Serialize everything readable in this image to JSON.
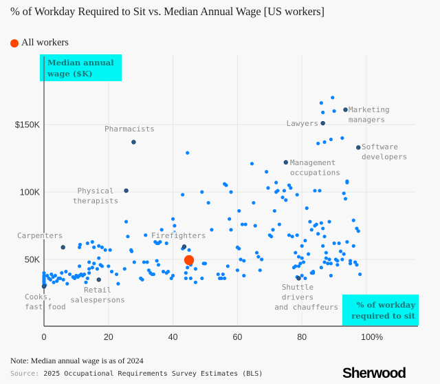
{
  "header": {
    "title": "% of Workday Required to Sit vs. Median Annual Wage [US workers]"
  },
  "legend": {
    "label": "All workers",
    "color": "#ff4500"
  },
  "footer": {
    "note": "Note: Median annual wage is as of 2024",
    "source_label": "Source:",
    "source_text": "2025 Occupational Requirements Survey Estimates (BLS)",
    "logo": "Sherwood"
  },
  "colors": {
    "point": "#0a84ff",
    "highlight": "#2a5a8a",
    "all_workers": "#ff4500",
    "axis_title_bg": "#00f5f5",
    "axis_title_text": "#1a7a78"
  },
  "chart_data": {
    "type": "scatter",
    "title": "% of Workday Required to Sit vs. Median Annual Wage [US workers]",
    "xlabel": "% of workday required to sit",
    "ylabel": "Median annual wage ($K)",
    "xlim": [
      0,
      115
    ],
    "ylim": [
      0,
      200
    ],
    "x_ticks": [
      {
        "value": 0,
        "label": "0"
      },
      {
        "value": 20,
        "label": "20"
      },
      {
        "value": 40,
        "label": "40"
      },
      {
        "value": 60,
        "label": "60"
      },
      {
        "value": 80,
        "label": "80"
      },
      {
        "value": 100,
        "label": "100%"
      }
    ],
    "y_ticks": [
      {
        "value": 50,
        "label": "50K"
      },
      {
        "value": 100,
        "label": "100K"
      },
      {
        "value": 150,
        "label": "$150K"
      }
    ],
    "grid": true,
    "all_workers": {
      "x": 45,
      "y": 49.5,
      "label": "All workers"
    },
    "highlighted": [
      {
        "name": "Pharmacists",
        "x": 27.8,
        "y": 137
      },
      {
        "name": "Physical therapists",
        "x": 25.5,
        "y": 101
      },
      {
        "name": "Carpenters",
        "x": 5.9,
        "y": 59
      },
      {
        "name": "Firefighters",
        "x": 43.5,
        "y": 59.5
      },
      {
        "name": "Retail salespersons",
        "x": 17,
        "y": 35
      },
      {
        "name": "Cooks, fast food",
        "x": 0,
        "y": 30
      },
      {
        "name": "Lawyers",
        "x": 86.5,
        "y": 151
      },
      {
        "name": "Marketing managers",
        "x": 93.5,
        "y": 161
      },
      {
        "name": "Software developers",
        "x": 97.5,
        "y": 133
      },
      {
        "name": "Management occupations",
        "x": 75,
        "y": 122
      },
      {
        "name": "Shuttle drivers and chauffeurs",
        "x": 79,
        "y": 36
      }
    ],
    "annotations": [
      {
        "target": "Pharmacists",
        "lines": [
          "Pharmacists"
        ]
      },
      {
        "target": "Physical therapists",
        "lines": [
          "Physical",
          "therapists"
        ]
      },
      {
        "target": "Carpenters",
        "lines": [
          "Carpenters"
        ]
      },
      {
        "target": "Firefighters",
        "lines": [
          "Firefighters"
        ]
      },
      {
        "target": "Retail salespersons",
        "lines": [
          "Retail",
          "salespersons"
        ]
      },
      {
        "target": "Cooks, fast food",
        "lines": [
          "Cooks,",
          "fast food"
        ]
      },
      {
        "target": "Lawyers",
        "lines": [
          "Lawyers"
        ]
      },
      {
        "target": "Marketing managers",
        "lines": [
          "Marketing",
          "managers"
        ]
      },
      {
        "target": "Software developers",
        "lines": [
          "Software",
          "developers"
        ]
      },
      {
        "target": "Management occupations",
        "lines": [
          "Management",
          "occupations"
        ]
      },
      {
        "target": "Shuttle drivers and chauffeurs",
        "lines": [
          "Shuttle",
          "drivers",
          "and chauffeurs"
        ]
      }
    ],
    "axis_title_lines": {
      "y": [
        "Median annual",
        "wage ($K)"
      ],
      "x": [
        "% of workday",
        "required to sit"
      ]
    },
    "points": [
      [
        0,
        40
      ],
      [
        0,
        38
      ],
      [
        0,
        37
      ],
      [
        0,
        36
      ],
      [
        0,
        35
      ],
      [
        0,
        34
      ],
      [
        0,
        33
      ],
      [
        0,
        32
      ],
      [
        0.4,
        31
      ],
      [
        1,
        38
      ],
      [
        1.5,
        36
      ],
      [
        2,
        35
      ],
      [
        2.3,
        39
      ],
      [
        2.8,
        37
      ],
      [
        3,
        33
      ],
      [
        3.5,
        38
      ],
      [
        4,
        34
      ],
      [
        4.5,
        36
      ],
      [
        5,
        36
      ],
      [
        5.5,
        40
      ],
      [
        6,
        35
      ],
      [
        6.8,
        41
      ],
      [
        7.2,
        32
      ],
      [
        8,
        39
      ],
      [
        9,
        37
      ],
      [
        9.5,
        36
      ],
      [
        10,
        38
      ],
      [
        10.5,
        37
      ],
      [
        11,
        38
      ],
      [
        11.5,
        39
      ],
      [
        12,
        38
      ],
      [
        12.5,
        39
      ],
      [
        13,
        33
      ],
      [
        13.5,
        36
      ],
      [
        14,
        40
      ],
      [
        11,
        45
      ],
      [
        14,
        43
      ],
      [
        14,
        48
      ],
      [
        15,
        44
      ],
      [
        15.5,
        47
      ],
      [
        16.5,
        43
      ],
      [
        17,
        51
      ],
      [
        17.5,
        46
      ],
      [
        18,
        45
      ],
      [
        20,
        45
      ],
      [
        21,
        41
      ],
      [
        22.5,
        39
      ],
      [
        23,
        32
      ],
      [
        25,
        43
      ],
      [
        11,
        59
      ],
      [
        11.2,
        61
      ],
      [
        13.5,
        62
      ],
      [
        15,
        63
      ],
      [
        15.5,
        59
      ],
      [
        17,
        60
      ],
      [
        18,
        59
      ],
      [
        19,
        57
      ],
      [
        20.5,
        57
      ],
      [
        25.5,
        78
      ],
      [
        26,
        67
      ],
      [
        27,
        57
      ],
      [
        27.2,
        56
      ],
      [
        28,
        48
      ],
      [
        30,
        36
      ],
      [
        30.5,
        35
      ],
      [
        31,
        48
      ],
      [
        31.5,
        68
      ],
      [
        32,
        48
      ],
      [
        32.5,
        42
      ],
      [
        33,
        40
      ],
      [
        33.5,
        39
      ],
      [
        34,
        39
      ],
      [
        35,
        49
      ],
      [
        35.5,
        46
      ],
      [
        35,
        62
      ],
      [
        35.5,
        62
      ],
      [
        36,
        63
      ],
      [
        36.5,
        72
      ],
      [
        34.5,
        63
      ],
      [
        37,
        41
      ],
      [
        38,
        40
      ],
      [
        38.5,
        41
      ],
      [
        38,
        62
      ],
      [
        39.5,
        36
      ],
      [
        40,
        38
      ],
      [
        40.5,
        70
      ],
      [
        41,
        68
      ],
      [
        40.5,
        75
      ],
      [
        40,
        80
      ],
      [
        43,
        58
      ],
      [
        43.5,
        59
      ],
      [
        45,
        57
      ],
      [
        45.5,
        46
      ],
      [
        44.5,
        44
      ],
      [
        44,
        40
      ],
      [
        44,
        36
      ],
      [
        45.5,
        36
      ],
      [
        47,
        43
      ],
      [
        47,
        33
      ],
      [
        49,
        36
      ],
      [
        49.5,
        47
      ],
      [
        50,
        47
      ],
      [
        52,
        72
      ],
      [
        51,
        92
      ],
      [
        44.5,
        129
      ],
      [
        43,
        98
      ],
      [
        49,
        100
      ],
      [
        54,
        39
      ],
      [
        54.5,
        36
      ],
      [
        55,
        36
      ],
      [
        55.5,
        39
      ],
      [
        56,
        36
      ],
      [
        56.5,
        105
      ],
      [
        57,
        45
      ],
      [
        57.5,
        80
      ],
      [
        56,
        106
      ],
      [
        58,
        100
      ],
      [
        58,
        72
      ],
      [
        60,
        59
      ],
      [
        60.5,
        58
      ],
      [
        61,
        50
      ],
      [
        62,
        49
      ],
      [
        62,
        38
      ],
      [
        60.5,
        86
      ],
      [
        60,
        42
      ],
      [
        61.5,
        76
      ],
      [
        62.5,
        76
      ],
      [
        64.5,
        121
      ],
      [
        65,
        92
      ],
      [
        65.5,
        75
      ],
      [
        66,
        55
      ],
      [
        66.5,
        52
      ],
      [
        67,
        42
      ],
      [
        67.5,
        50
      ],
      [
        69,
        115
      ],
      [
        69.5,
        103
      ],
      [
        70,
        68
      ],
      [
        70.5,
        67
      ],
      [
        71,
        72
      ],
      [
        71.5,
        86
      ],
      [
        72,
        107
      ],
      [
        72,
        100
      ],
      [
        72.5,
        101
      ],
      [
        73,
        76
      ],
      [
        74,
        96
      ],
      [
        74.5,
        101
      ],
      [
        75,
        94
      ],
      [
        76,
        105
      ],
      [
        76,
        68
      ],
      [
        76.5,
        103
      ],
      [
        77,
        67
      ],
      [
        78.5,
        68
      ],
      [
        78.5,
        98
      ],
      [
        79,
        45
      ],
      [
        80,
        60
      ],
      [
        81,
        64
      ],
      [
        81.5,
        88
      ],
      [
        82,
        54
      ],
      [
        82.5,
        78
      ],
      [
        83,
        40
      ],
      [
        83.5,
        40
      ],
      [
        83.5,
        41
      ],
      [
        83,
        72
      ],
      [
        84,
        75
      ],
      [
        84.5,
        76
      ],
      [
        84,
        101
      ],
      [
        85,
        69
      ],
      [
        85.5,
        101
      ],
      [
        86,
        122
      ],
      [
        86,
        77
      ],
      [
        86.5,
        73
      ],
      [
        87,
        67
      ],
      [
        87.5,
        51
      ],
      [
        87,
        48
      ],
      [
        88,
        47
      ],
      [
        88.5,
        50
      ],
      [
        89,
        47
      ],
      [
        89,
        38
      ],
      [
        87.5,
        55
      ],
      [
        88.5,
        78
      ],
      [
        86.5,
        60
      ],
      [
        86,
        44
      ],
      [
        85,
        136
      ],
      [
        86,
        166
      ],
      [
        86.5,
        159
      ],
      [
        87,
        137
      ],
      [
        89,
        139
      ],
      [
        89.5,
        170
      ],
      [
        90,
        160
      ],
      [
        91,
        46
      ],
      [
        91.5,
        62
      ],
      [
        92,
        56
      ],
      [
        92.5,
        50
      ],
      [
        93,
        99
      ],
      [
        93.5,
        95
      ],
      [
        94,
        108
      ],
      [
        94,
        107
      ],
      [
        94,
        63
      ],
      [
        95,
        47
      ],
      [
        95,
        49
      ],
      [
        96,
        60
      ],
      [
        96,
        79
      ],
      [
        96.5,
        48
      ],
      [
        97,
        46
      ],
      [
        97,
        73
      ],
      [
        97.5,
        71
      ],
      [
        98,
        39
      ],
      [
        92.5,
        140
      ],
      [
        93,
        54
      ],
      [
        90,
        62
      ],
      [
        90.5,
        50
      ],
      [
        91,
        49
      ],
      [
        80,
        51
      ],
      [
        79.5,
        47
      ],
      [
        79,
        52
      ],
      [
        78,
        55
      ],
      [
        78,
        45
      ],
      [
        77.5,
        44
      ],
      [
        80.5,
        48
      ],
      [
        80,
        38
      ],
      [
        81,
        36
      ],
      [
        78.5,
        37
      ]
    ]
  }
}
